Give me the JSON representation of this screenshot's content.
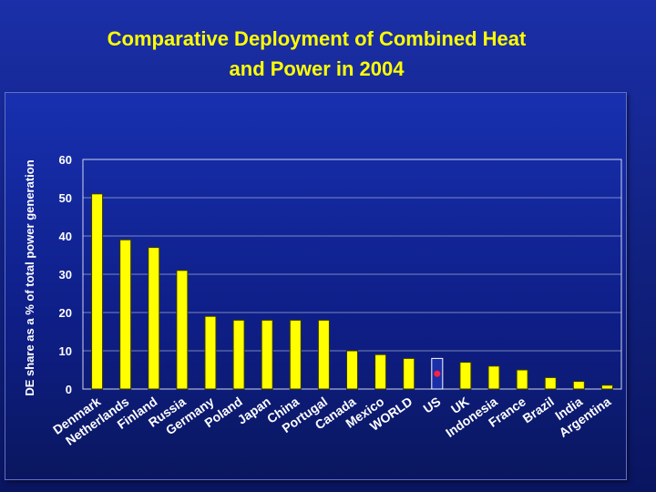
{
  "title_line1": "Comparative Deployment of Combined Heat",
  "title_line2": "and Power in 2004",
  "colors": {
    "bar_fill": "#ffff00",
    "bar_stroke": "#3a3a00",
    "highlight_fill": "#1a2fa8",
    "highlight_stroke": "#ffffff",
    "highlight_dot": "#ff2040",
    "grid": "#ffffff",
    "background": "#1230a0"
  },
  "chart_data": {
    "type": "bar",
    "title": "Comparative Deployment of Combined Heat and Power in 2004",
    "xlabel": "",
    "ylabel": "DE share as a % of total power generation",
    "ylim": [
      0,
      60
    ],
    "yticks": [
      0,
      10,
      20,
      30,
      40,
      50,
      60
    ],
    "grid": true,
    "categories": [
      "Denmark",
      "Netherlands",
      "Finland",
      "Russia",
      "Germany",
      "Poland",
      "Japan",
      "China",
      "Portugal",
      "Canada",
      "Mexico",
      "WORLD",
      "US",
      "UK",
      "Indonesia",
      "France",
      "Brazil",
      "India",
      "Argentina"
    ],
    "values": [
      51,
      39,
      37,
      31,
      19,
      18,
      18,
      18,
      18,
      10,
      9,
      8,
      8,
      7,
      6,
      5,
      3,
      2,
      1
    ],
    "highlight": "US"
  }
}
